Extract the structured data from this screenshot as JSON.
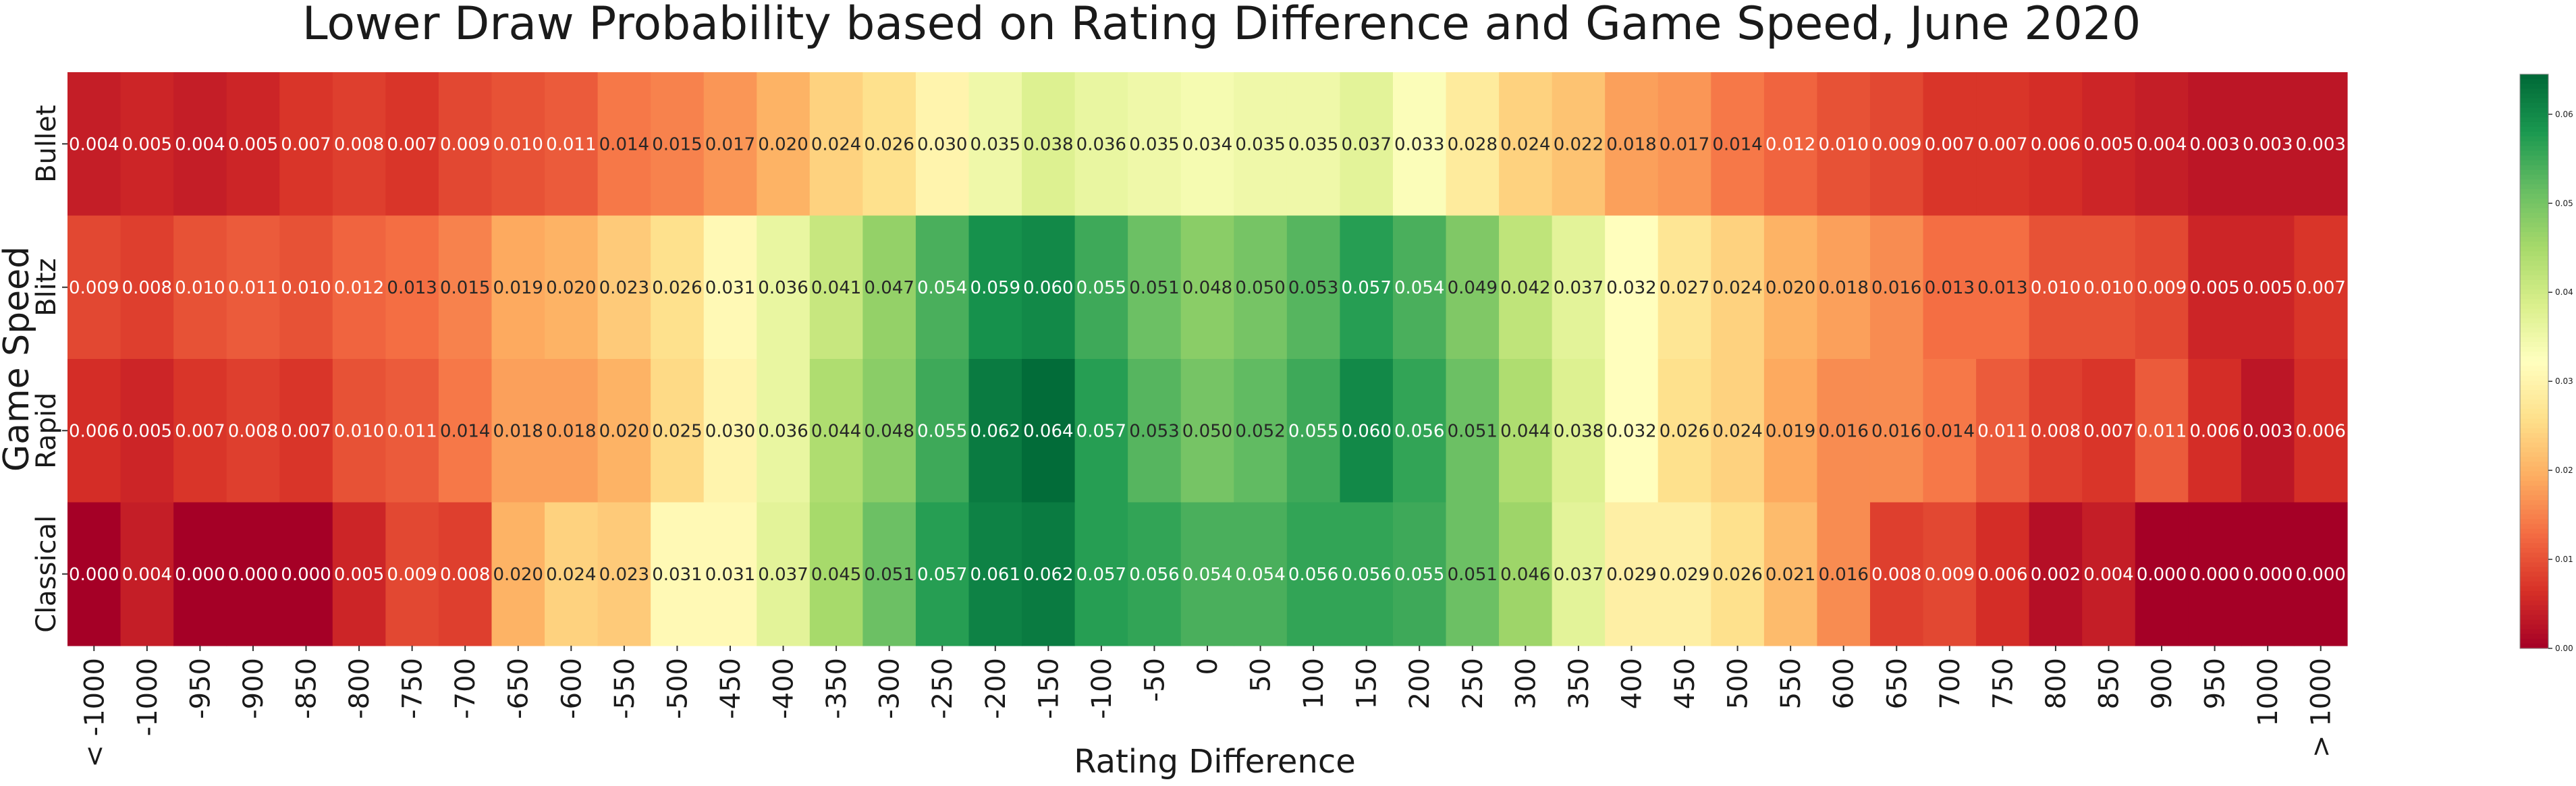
{
  "chart_data": {
    "type": "heatmap",
    "title": "Lower Draw Probability based on Rating Difference and Game Speed, June 2020",
    "xlabel": "Rating Difference",
    "ylabel": "Game Speed",
    "x_categories": [
      "< -1000",
      "-1000",
      "-950",
      "-900",
      "-850",
      "-800",
      "-750",
      "-700",
      "-650",
      "-600",
      "-550",
      "-500",
      "-450",
      "-400",
      "-350",
      "-300",
      "-250",
      "-200",
      "-150",
      "-100",
      "-50",
      "0",
      "50",
      "100",
      "150",
      "200",
      "250",
      "300",
      "350",
      "400",
      "450",
      "500",
      "550",
      "600",
      "650",
      "700",
      "750",
      "800",
      "850",
      "900",
      "950",
      "1000",
      "> 1000"
    ],
    "y_categories": [
      "Bullet",
      "Blitz",
      "Rapid",
      "Classical"
    ],
    "values": [
      [
        "0.004",
        "0.005",
        "0.004",
        "0.005",
        "0.007",
        "0.008",
        "0.007",
        "0.009",
        "0.010",
        "0.011",
        "0.014",
        "0.015",
        "0.017",
        "0.020",
        "0.024",
        "0.026",
        "0.030",
        "0.035",
        "0.038",
        "0.036",
        "0.035",
        "0.034",
        "0.035",
        "0.035",
        "0.037",
        "0.033",
        "0.028",
        "0.024",
        "0.022",
        "0.018",
        "0.017",
        "0.014",
        "0.012",
        "0.010",
        "0.009",
        "0.007",
        "0.007",
        "0.006",
        "0.005",
        "0.004",
        "0.003",
        "0.003",
        "0.003"
      ],
      [
        "0.009",
        "0.008",
        "0.010",
        "0.011",
        "0.010",
        "0.012",
        "0.013",
        "0.015",
        "0.019",
        "0.020",
        "0.023",
        "0.026",
        "0.031",
        "0.036",
        "0.041",
        "0.047",
        "0.054",
        "0.059",
        "0.060",
        "0.055",
        "0.051",
        "0.048",
        "0.050",
        "0.053",
        "0.057",
        "0.054",
        "0.049",
        "0.042",
        "0.037",
        "0.032",
        "0.027",
        "0.024",
        "0.020",
        "0.018",
        "0.016",
        "0.013",
        "0.013",
        "0.010",
        "0.010",
        "0.009",
        "0.005",
        "0.005",
        "0.007"
      ],
      [
        "0.006",
        "0.005",
        "0.007",
        "0.008",
        "0.007",
        "0.010",
        "0.011",
        "0.014",
        "0.018",
        "0.018",
        "0.020",
        "0.025",
        "0.030",
        "0.036",
        "0.044",
        "0.048",
        "0.055",
        "0.062",
        "0.064",
        "0.057",
        "0.053",
        "0.050",
        "0.052",
        "0.055",
        "0.060",
        "0.056",
        "0.051",
        "0.044",
        "0.038",
        "0.032",
        "0.026",
        "0.024",
        "0.019",
        "0.016",
        "0.016",
        "0.014",
        "0.011",
        "0.008",
        "0.007",
        "0.011",
        "0.006",
        "0.003",
        "0.006"
      ],
      [
        "0.000",
        "0.004",
        "0.000",
        "0.000",
        "0.000",
        "0.005",
        "0.009",
        "0.008",
        "0.020",
        "0.024",
        "0.023",
        "0.031",
        "0.031",
        "0.037",
        "0.045",
        "0.051",
        "0.057",
        "0.061",
        "0.062",
        "0.057",
        "0.056",
        "0.054",
        "0.054",
        "0.056",
        "0.056",
        "0.055",
        "0.051",
        "0.046",
        "0.037",
        "0.029",
        "0.029",
        "0.026",
        "0.021",
        "0.016",
        "0.008",
        "0.009",
        "0.006",
        "0.002",
        "0.004",
        "0.000",
        "0.000",
        "0.000",
        "0.000"
      ]
    ],
    "colorscale": "RdYlGn",
    "vmin": 0,
    "vmax": 0.0645,
    "colorbar_ticks": [
      "0.00",
      "0.01",
      "0.02",
      "0.03",
      "0.04",
      "0.05",
      "0.06"
    ],
    "colorbar_tick_values": [
      0,
      0.01,
      0.02,
      0.03,
      0.04,
      0.05,
      0.06
    ]
  }
}
